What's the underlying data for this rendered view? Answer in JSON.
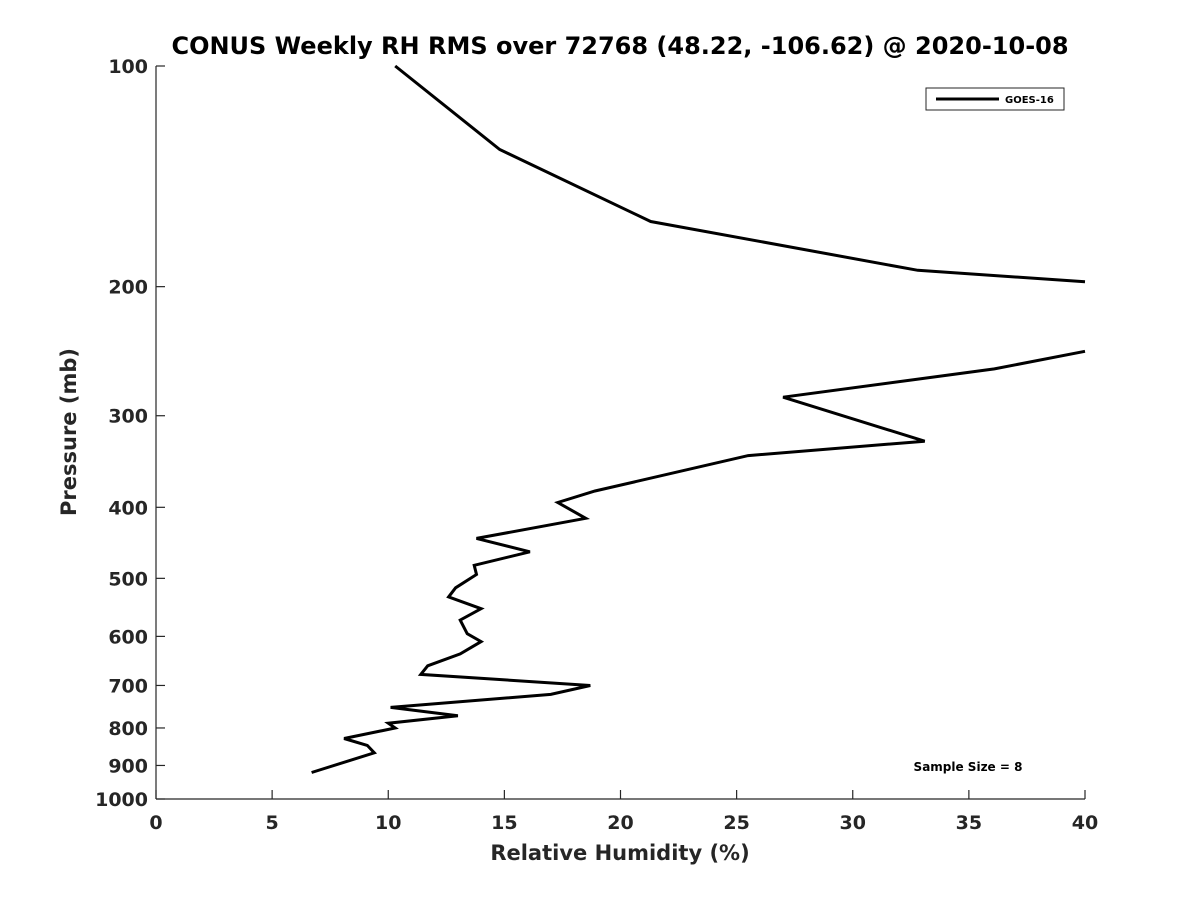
{
  "chart_data": {
    "type": "line",
    "title": "CONUS Weekly RH RMS over 72768 (48.22, -106.62) @ 2020-10-08",
    "xlabel": "Relative Humidity (%)",
    "ylabel": "Pressure (mb)",
    "xlim": [
      0,
      40
    ],
    "ylim": [
      100,
      1000
    ],
    "yscale": "log",
    "y_reversed": true,
    "grid": false,
    "legend_position": "top-right",
    "x_ticks": [
      "0",
      "5",
      "10",
      "15",
      "20",
      "25",
      "30",
      "35",
      "40"
    ],
    "y_ticks": [
      "100",
      "200",
      "300",
      "400",
      "500",
      "600",
      "700",
      "800",
      "900",
      "1000"
    ],
    "annotation": "Sample Size = 8",
    "series": [
      {
        "name": "GOES-16",
        "color": "#000000",
        "segments": [
          [
            [
              10.3,
              100
            ],
            [
              14.8,
              130
            ],
            [
              21.3,
              163
            ],
            [
              32.8,
              190
            ],
            [
              40,
              197
            ]
          ],
          [
            [
              40,
              245
            ],
            [
              36.1,
              259
            ],
            [
              27.0,
              283
            ],
            [
              33.1,
              325
            ],
            [
              25.5,
              340
            ],
            [
              18.9,
              380
            ],
            [
              17.3,
              394
            ],
            [
              18.5,
              414
            ],
            [
              13.8,
              441
            ],
            [
              16.1,
              460
            ],
            [
              13.7,
              480
            ],
            [
              13.8,
              494
            ],
            [
              12.9,
              515
            ],
            [
              12.6,
              530
            ],
            [
              14.0,
              550
            ],
            [
              13.1,
              570
            ],
            [
              13.4,
              595
            ],
            [
              14.0,
              610
            ],
            [
              13.1,
              634
            ],
            [
              11.7,
              658
            ],
            [
              11.4,
              676
            ],
            [
              18.7,
              700
            ],
            [
              17.0,
              720
            ],
            [
              10.1,
              750
            ],
            [
              13.0,
              770
            ],
            [
              10.0,
              788
            ],
            [
              10.3,
              800
            ],
            [
              8.1,
              827
            ],
            [
              9.1,
              845
            ],
            [
              9.4,
              865
            ],
            [
              6.7,
              920
            ]
          ]
        ]
      }
    ]
  }
}
